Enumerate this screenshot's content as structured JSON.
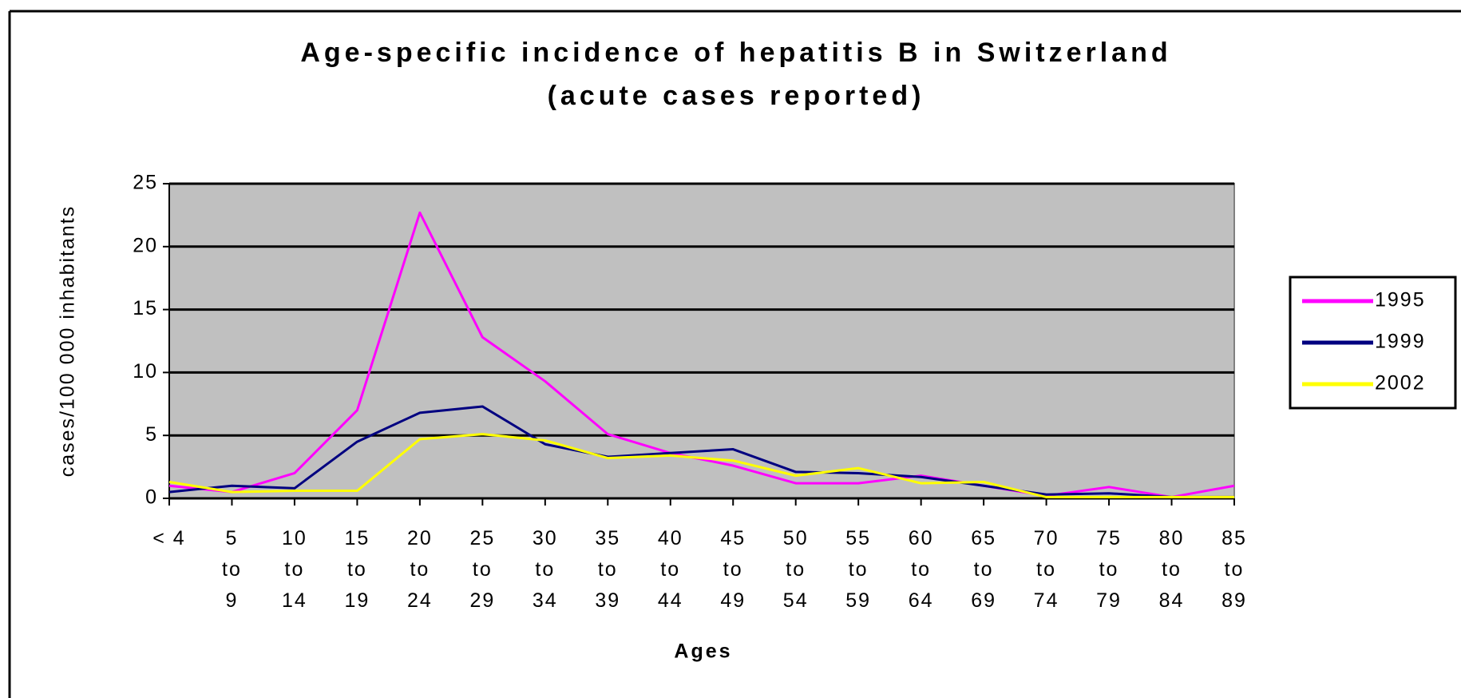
{
  "chart_data": {
    "type": "line",
    "title": "Age-specific incidence of hepatitis B in Switzerland",
    "subtitle": "(acute cases reported)",
    "x_label": "Ages",
    "y_label": "cases/100 000 inhabitants",
    "categories": [
      "< 4",
      "5\nto\n9",
      "10\nto\n14",
      "15\nto\n19",
      "20\nto\n24",
      "25\nto\n29",
      "30\nto\n34",
      "35\nto\n39",
      "40\nto\n44",
      "45\nto\n49",
      "50\nto\n54",
      "55\nto\n59",
      "60\nto\n64",
      "65\nto\n69",
      "70\nto\n74",
      "75\nto\n79",
      "80\nto\n84",
      "85\nto\n89"
    ],
    "series": [
      {
        "name": "1995",
        "color": "#ff00ff",
        "values": [
          1.0,
          0.5,
          2.0,
          7.0,
          22.7,
          12.8,
          9.3,
          5.1,
          3.6,
          2.6,
          1.2,
          1.2,
          1.8,
          1.0,
          0.2,
          0.9,
          0.1,
          1.0
        ]
      },
      {
        "name": "1999",
        "color": "#000080",
        "values": [
          0.5,
          1.0,
          0.8,
          4.5,
          6.8,
          7.3,
          4.3,
          3.3,
          3.6,
          3.9,
          2.1,
          2.0,
          1.7,
          1.0,
          0.3,
          0.4,
          0.1,
          0.1
        ]
      },
      {
        "name": "2002",
        "color": "#ffff00",
        "values": [
          1.3,
          0.5,
          0.6,
          0.6,
          4.7,
          5.1,
          4.6,
          3.2,
          3.4,
          3.0,
          1.8,
          2.4,
          1.2,
          1.3,
          0.1,
          0.1,
          0.1,
          0.1
        ]
      }
    ],
    "ylim": [
      0,
      25
    ],
    "yticks": [
      0,
      5,
      10,
      15,
      20,
      25
    ],
    "grid": true,
    "legend": "right",
    "plot_background": "#c0c0c0"
  }
}
